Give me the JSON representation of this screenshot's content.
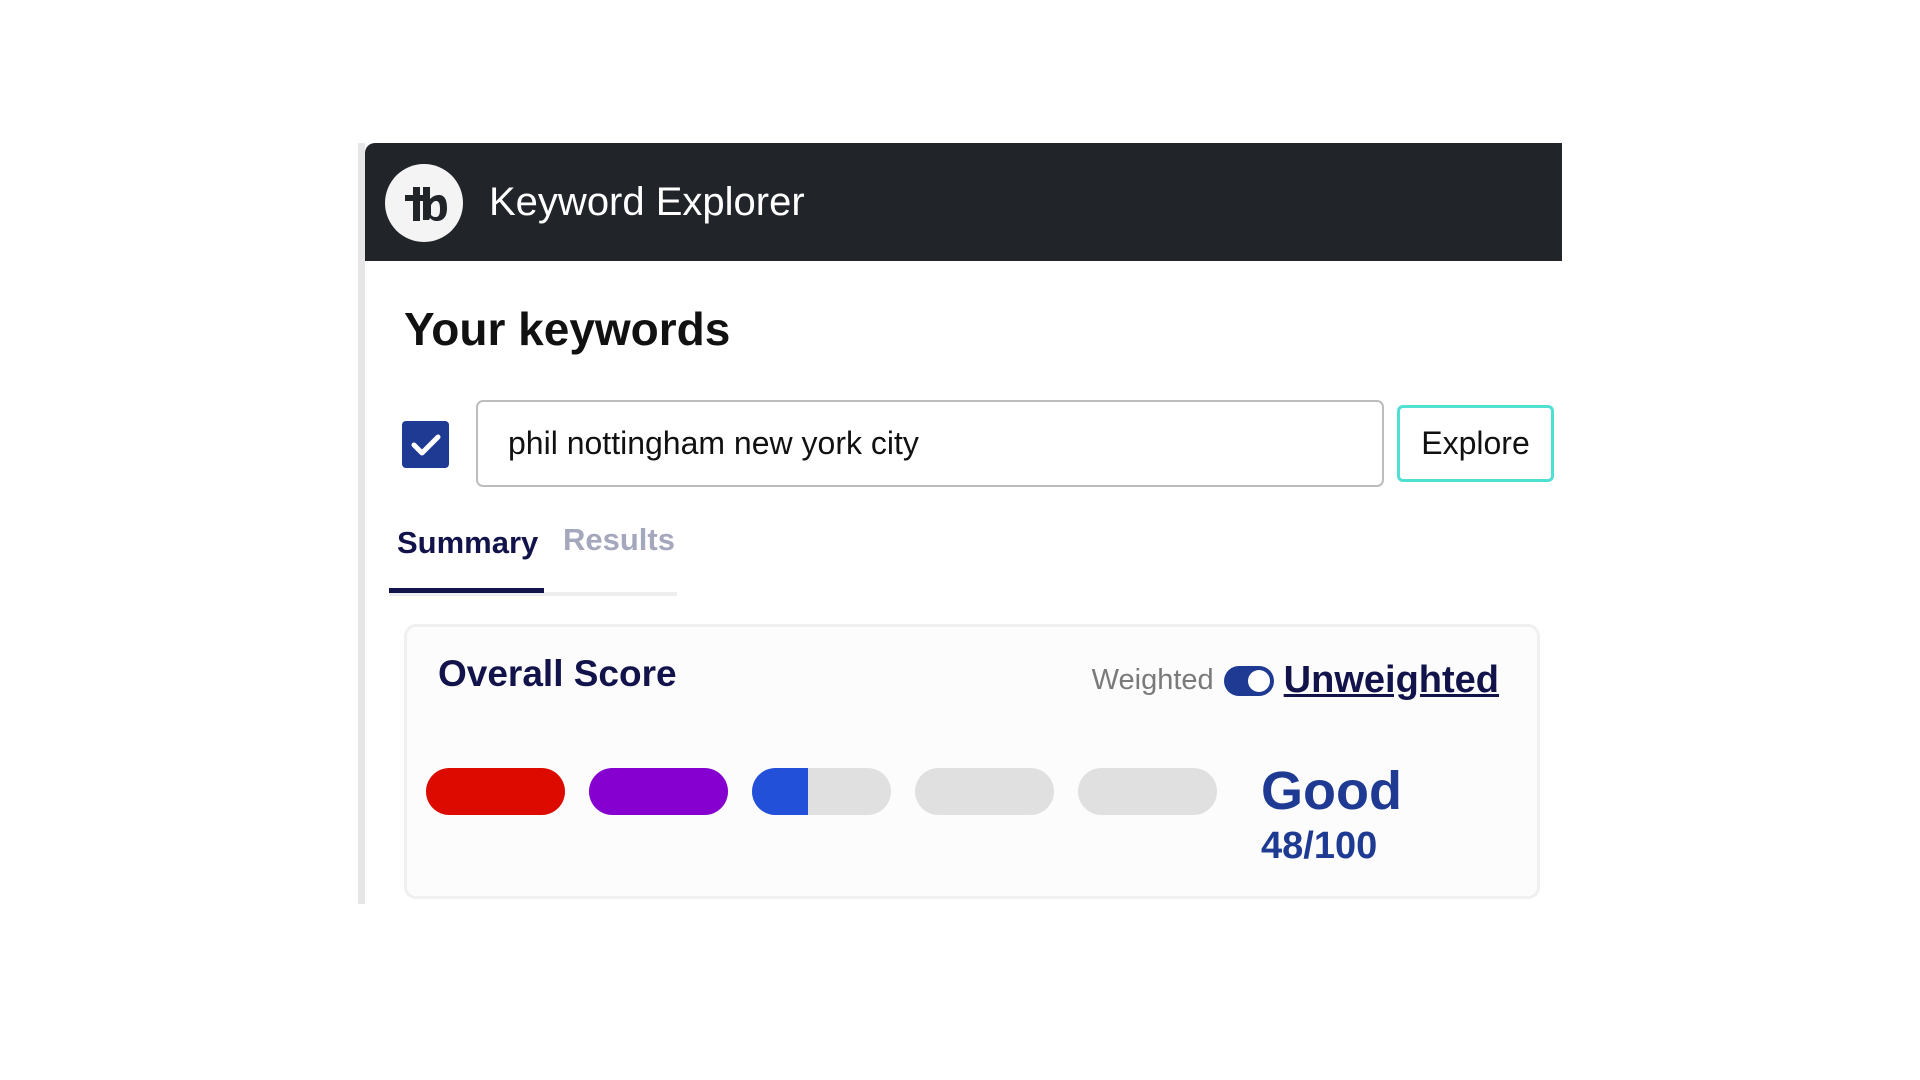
{
  "header": {
    "title": "Keyword Explorer",
    "logo_icon": "tubebuddy-logo"
  },
  "main": {
    "heading": "Your keywords",
    "keyword_checked": true,
    "keyword_value": "phil nottingham new york city",
    "explore_label": "Explore",
    "tabs": [
      {
        "label": "Summary",
        "active": true
      },
      {
        "label": "Results",
        "active": false
      }
    ]
  },
  "score_card": {
    "title": "Overall Score",
    "weighted_label": "Weighted",
    "unweighted_label": "Unweighted",
    "toggle_on": true,
    "rating": "Good",
    "score": "48/100",
    "score_value": 48,
    "segments": [
      {
        "color": "#dd0a00",
        "fill": 1.0
      },
      {
        "color": "#8600d0",
        "fill": 1.0
      },
      {
        "color": "#2350d8",
        "fill": 0.4
      },
      {
        "color": "#2350d8",
        "fill": 0
      },
      {
        "color": "#2350d8",
        "fill": 0
      }
    ]
  },
  "colors": {
    "accent": "#1f3a93",
    "header_bg": "#212529",
    "explore_border": "#4fe0d2",
    "tab_active": "#12134a"
  }
}
